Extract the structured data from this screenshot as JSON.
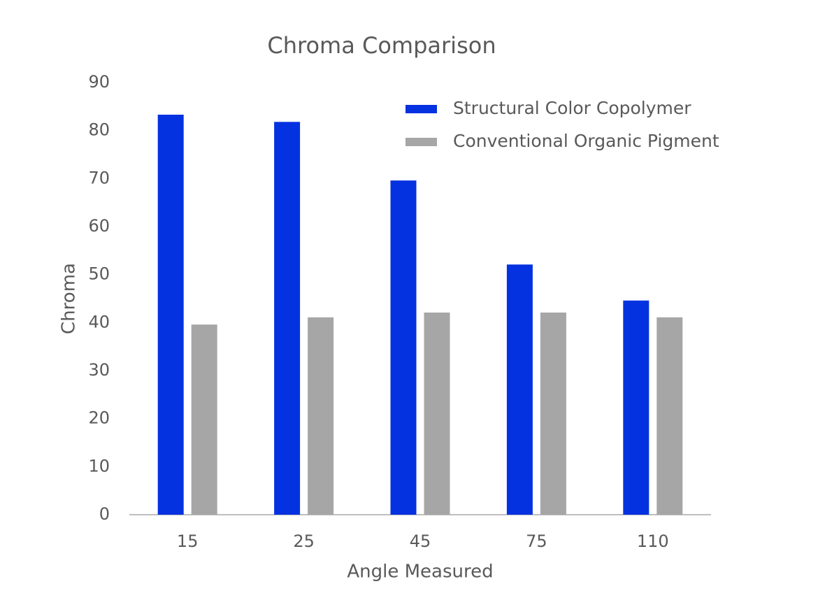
{
  "chart_data": {
    "type": "bar",
    "title": "Chroma Comparison",
    "x_label": "Angle Measured",
    "y_label": "Chroma",
    "categories": [
      "15",
      "25",
      "45",
      "75",
      "110"
    ],
    "series": [
      {
        "name": "Structural Color Copolymer",
        "color": "#0432e0",
        "values": [
          83.3,
          81.8,
          69.6,
          52.1,
          44.6
        ]
      },
      {
        "name": "Conventional Organic Pigment",
        "color": "#a6a6a6",
        "values": [
          39.6,
          41.1,
          42.1,
          42.1,
          41.1
        ]
      }
    ],
    "ylim": [
      0,
      90
    ],
    "yticks": [
      0,
      10,
      20,
      30,
      40,
      50,
      60,
      70,
      80,
      90
    ],
    "grid": false,
    "legend": "top-right"
  }
}
